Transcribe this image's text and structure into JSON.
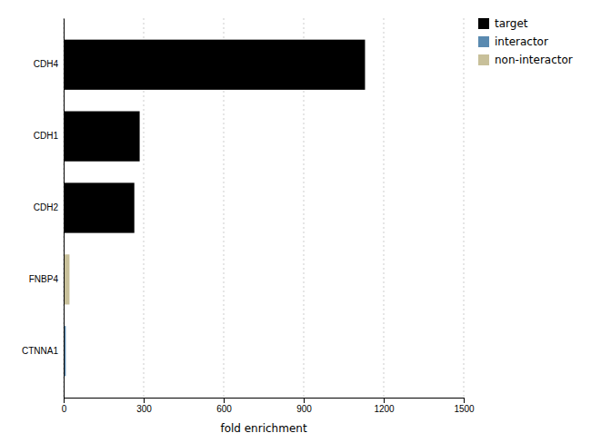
{
  "chart_data": {
    "type": "bar",
    "orientation": "horizontal",
    "categories": [
      "CDH4",
      "CDH1",
      "CDH2",
      "FNBP4",
      "CTNNA1"
    ],
    "values": [
      1130,
      285,
      265,
      22,
      8
    ],
    "colors": [
      "#000000",
      "#000000",
      "#000000",
      "#c8c09a",
      "#5a8ab0"
    ],
    "xlabel": "fold enrichment",
    "xlim": [
      0,
      1500
    ],
    "xticks": [
      0,
      300,
      600,
      900,
      1200,
      1500
    ],
    "grid": true,
    "legend": "upper right",
    "legend_entries": [
      {
        "name": "target",
        "color": "#000000"
      },
      {
        "name": "interactor",
        "color": "#5a8ab0"
      },
      {
        "name": "non-interactor",
        "color": "#c8c09a"
      }
    ]
  }
}
